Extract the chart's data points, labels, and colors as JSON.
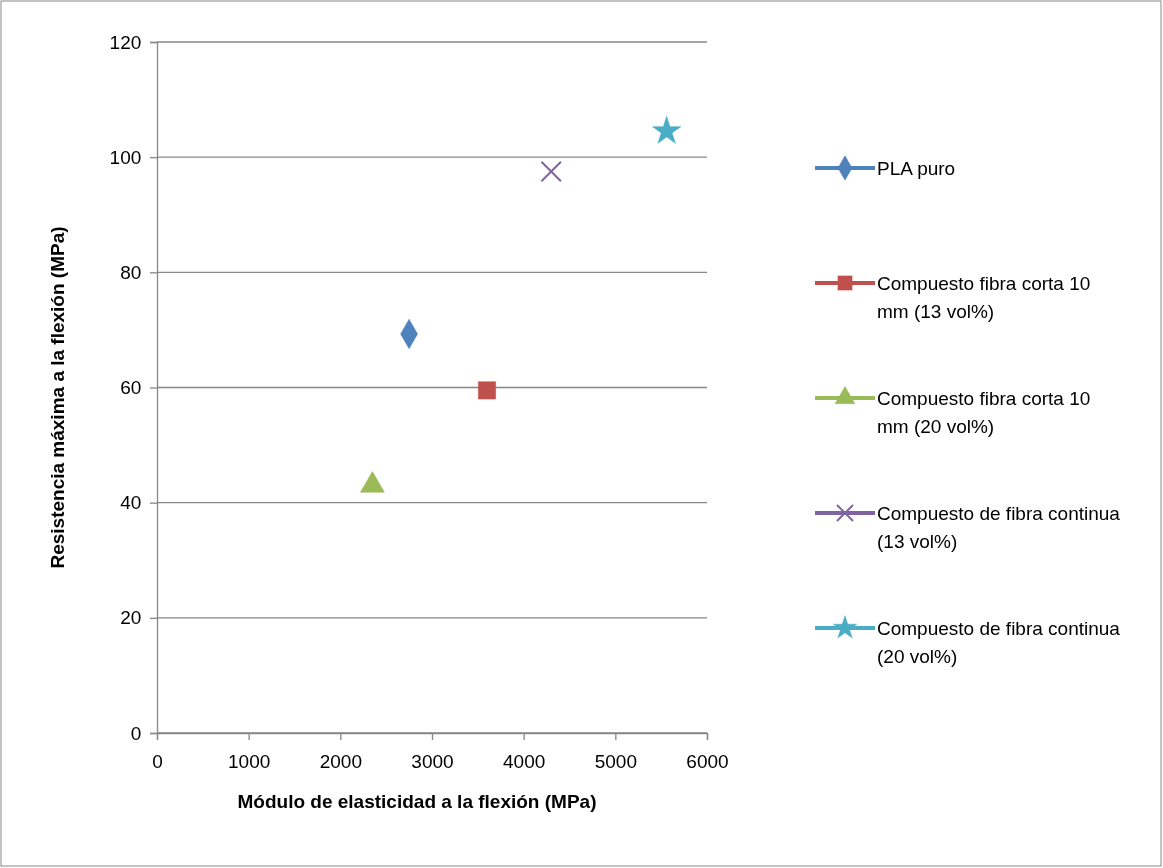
{
  "chart_data": {
    "type": "scatter",
    "xlabel": "Módulo de elasticidad a la flexión (MPa)",
    "ylabel": "Resistencia máxima a la flexión (MPa)",
    "xlim": [
      0,
      6000
    ],
    "xticks": [
      0,
      1000,
      2000,
      3000,
      4000,
      5000,
      6000
    ],
    "ylim": [
      0,
      120
    ],
    "yticks": [
      0,
      20,
      40,
      60,
      80,
      100,
      120
    ],
    "grid": "y",
    "legend": "right",
    "series": [
      {
        "name": "PLA puro",
        "color": "#4f81bd",
        "marker": "diamond",
        "x": [
          2750
        ],
        "values": [
          69.3
        ]
      },
      {
        "name": "Compuesto fibra corta 10 mm (13 vol%)",
        "color": "#c0504d",
        "marker": "square",
        "x": [
          3600
        ],
        "values": [
          59.5
        ]
      },
      {
        "name": "Compuesto fibra corta 10 mm (20 vol%)",
        "color": "#9bbb59",
        "marker": "triangle",
        "x": [
          2350
        ],
        "values": [
          43
        ]
      },
      {
        "name": "Compuesto de fibra continua (13 vol%)",
        "color": "#8064a2",
        "marker": "cross",
        "x": [
          4300
        ],
        "values": [
          97.5
        ]
      },
      {
        "name": "Compuesto de fibra continua (20 vol%)",
        "color": "#4bacc6",
        "marker": "star",
        "x": [
          5560
        ],
        "values": [
          104.5
        ]
      }
    ]
  }
}
